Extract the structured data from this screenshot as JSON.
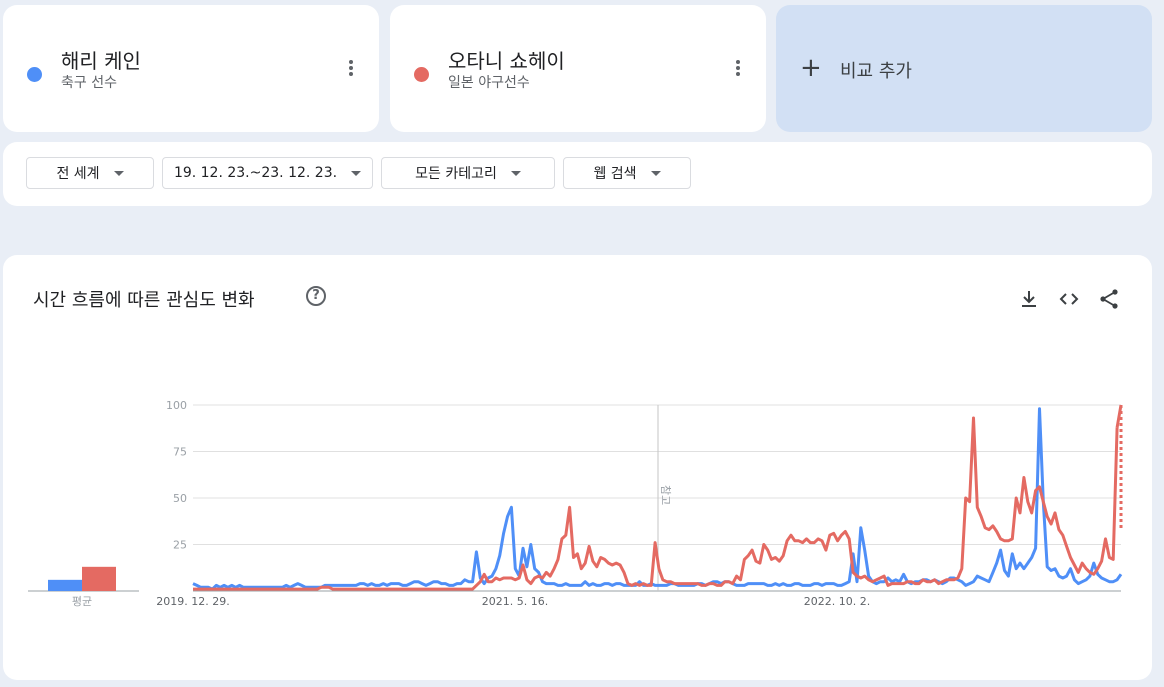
{
  "terms": [
    {
      "name": "해리 케인",
      "subtitle": "축구 선수",
      "color": "#4f8ff7"
    },
    {
      "name": "오타니 쇼헤이",
      "subtitle": "일본 야구선수",
      "color": "#e46a62"
    }
  ],
  "add_compare": {
    "plus": "+",
    "label": "비교 추가"
  },
  "filters": {
    "region": "전 세계",
    "date_range": "19. 12. 23.~23. 12. 23.",
    "category": "모든 카테고리",
    "search_type": "웹 검색"
  },
  "chart_section": {
    "title": "시간 흐름에 따른 관심도 변화",
    "help": "?",
    "tools": [
      "download-icon",
      "embed-icon",
      "share-icon"
    ]
  },
  "chart_data": {
    "type": "line",
    "ylim": [
      0,
      100
    ],
    "yticks": [
      "100",
      "75",
      "50",
      "25"
    ],
    "xticks": [
      "2019. 12. 29.",
      "2021. 5. 16.",
      "2022. 10. 2."
    ],
    "annotation": "참고",
    "average_label": "평균",
    "averages": [
      6,
      13
    ],
    "series": [
      {
        "color": "#4f8ff7",
        "values": [
          4,
          3,
          2,
          2,
          2,
          1,
          3,
          2,
          3,
          2,
          3,
          2,
          3,
          2,
          2,
          2,
          2,
          2,
          2,
          2,
          2,
          2,
          2,
          2,
          3,
          2,
          3,
          4,
          3,
          2,
          2,
          2,
          2,
          2,
          3,
          3,
          3,
          3,
          3,
          3,
          3,
          3,
          3,
          4,
          4,
          3,
          4,
          3,
          3,
          4,
          3,
          4,
          4,
          4,
          3,
          3,
          4,
          5,
          5,
          4,
          3,
          4,
          5,
          5,
          4,
          4,
          3,
          3,
          4,
          4,
          6,
          5,
          5,
          21,
          7,
          4,
          7,
          8,
          12,
          19,
          31,
          40,
          45,
          12,
          8,
          23,
          13,
          25,
          12,
          10,
          5,
          4,
          4,
          4,
          3,
          3,
          4,
          3,
          3,
          3,
          3,
          5,
          3,
          4,
          3,
          3,
          4,
          4,
          3,
          4,
          4,
          3,
          3,
          3,
          3,
          5,
          3,
          3,
          4,
          3,
          3,
          3,
          3,
          4,
          4,
          3,
          3,
          3,
          3,
          3,
          4,
          4,
          3,
          4,
          5,
          5,
          4,
          5,
          5,
          4,
          3,
          3,
          3,
          4,
          4,
          4,
          4,
          4,
          3,
          3,
          4,
          3,
          4,
          3,
          3,
          4,
          4,
          3,
          3,
          3,
          4,
          4,
          3,
          4,
          4,
          4,
          3,
          3,
          4,
          5,
          20,
          5,
          34,
          22,
          8,
          5,
          4,
          5,
          5,
          7,
          5,
          6,
          5,
          9,
          5,
          4,
          5,
          5,
          6,
          6,
          5,
          6,
          5,
          4,
          5,
          7,
          7,
          6,
          5,
          3,
          4,
          5,
          8,
          7,
          6,
          5,
          10,
          15,
          22,
          11,
          8,
          20,
          12,
          15,
          12,
          15,
          18,
          23,
          98,
          48,
          13,
          11,
          12,
          8,
          7,
          8,
          12,
          6,
          4,
          5,
          6,
          8,
          15,
          9,
          7,
          6,
          5,
          5,
          6,
          9
        ]
      },
      {
        "color": "#e46a62",
        "values": [
          1,
          1,
          1,
          1,
          1,
          1,
          1,
          1,
          1,
          1,
          1,
          1,
          1,
          1,
          1,
          1,
          1,
          1,
          1,
          1,
          1,
          1,
          1,
          1,
          1,
          1,
          1,
          1,
          1,
          1,
          1,
          1,
          1,
          2,
          2,
          2,
          1,
          1,
          1,
          1,
          1,
          1,
          1,
          1,
          1,
          1,
          1,
          1,
          1,
          1,
          1,
          1,
          1,
          1,
          1,
          1,
          1,
          1,
          1,
          1,
          1,
          1,
          1,
          1,
          1,
          1,
          1,
          1,
          1,
          1,
          1,
          1,
          1,
          3,
          5,
          9,
          5,
          5,
          7,
          6,
          7,
          7,
          7,
          6,
          7,
          14,
          6,
          4,
          7,
          8,
          7,
          10,
          8,
          12,
          17,
          28,
          30,
          45,
          18,
          20,
          12,
          15,
          24,
          16,
          13,
          18,
          17,
          15,
          14,
          15,
          14,
          10,
          4,
          3,
          4,
          3,
          4,
          3,
          3,
          26,
          12,
          6,
          5,
          5,
          4,
          4,
          4,
          4,
          4,
          4,
          4,
          3,
          3,
          4,
          4,
          3,
          3,
          5,
          5,
          4,
          8,
          6,
          17,
          19,
          22,
          16,
          15,
          25,
          22,
          17,
          18,
          16,
          19,
          27,
          30,
          27,
          27,
          26,
          28,
          26,
          26,
          28,
          27,
          22,
          30,
          31,
          27,
          30,
          32,
          28,
          10,
          8,
          7,
          8,
          6,
          5,
          6,
          7,
          8,
          3,
          4,
          4,
          4,
          4,
          5,
          5,
          4,
          4,
          6,
          5,
          5,
          6,
          4,
          5,
          6,
          6,
          6,
          7,
          12,
          50,
          48,
          93,
          45,
          40,
          34,
          33,
          35,
          32,
          28,
          27,
          27,
          28,
          50,
          42,
          61,
          48,
          42,
          54,
          56,
          48,
          40,
          36,
          42,
          33,
          30,
          24,
          18,
          14,
          10,
          15,
          12,
          10,
          9,
          12,
          16,
          28,
          18,
          17,
          88,
          100
        ]
      }
    ]
  }
}
